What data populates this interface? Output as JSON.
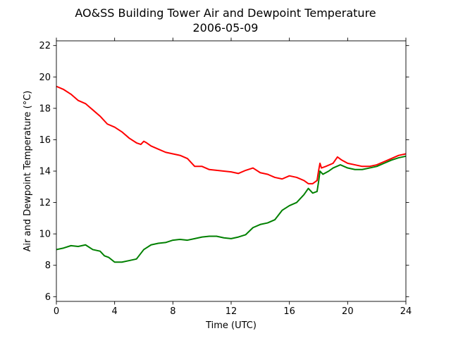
{
  "chart_data": {
    "type": "line",
    "title": "AO&SS Building Tower Air and Dewpoint Temperature",
    "subtitle": "2006-05-09",
    "xlabel": "Time (UTC)",
    "ylabel": "Air and Dewpoint Temperature (°C)",
    "xlim": [
      0,
      24
    ],
    "ylim": [
      5.7,
      22.3
    ],
    "xticks": [
      0,
      4,
      8,
      12,
      16,
      20,
      24
    ],
    "yticks": [
      6,
      8,
      10,
      12,
      14,
      16,
      18,
      20,
      22
    ],
    "grid": false,
    "series": [
      {
        "color": "#ff0000",
        "x": [
          0,
          0.5,
          1,
          1.5,
          2,
          2.5,
          3,
          3.2,
          3.5,
          4,
          4.5,
          5,
          5.5,
          5.8,
          6,
          6.2,
          6.5,
          7,
          7.5,
          8,
          8.5,
          9,
          9.5,
          10,
          10.5,
          11,
          11.5,
          12,
          12.5,
          13,
          13.5,
          14,
          14.5,
          15,
          15.5,
          16,
          16.5,
          17,
          17.3,
          17.6,
          17.9,
          18,
          18.1,
          18.2,
          18.5,
          19,
          19.3,
          19.6,
          20,
          20.5,
          21,
          21.5,
          22,
          22.5,
          23,
          23.5,
          24
        ],
        "y": [
          19.4,
          19.2,
          18.9,
          18.5,
          18.3,
          17.9,
          17.5,
          17.3,
          17.0,
          16.8,
          16.5,
          16.1,
          15.8,
          15.7,
          15.9,
          15.8,
          15.6,
          15.4,
          15.2,
          15.1,
          15.0,
          14.8,
          14.3,
          14.3,
          14.1,
          14.05,
          14.0,
          13.95,
          13.85,
          14.05,
          14.2,
          13.9,
          13.8,
          13.6,
          13.5,
          13.7,
          13.6,
          13.4,
          13.2,
          13.2,
          13.4,
          14.0,
          14.5,
          14.2,
          14.3,
          14.5,
          14.9,
          14.7,
          14.5,
          14.4,
          14.3,
          14.3,
          14.4,
          14.6,
          14.8,
          15.0,
          15.1
        ]
      },
      {
        "color": "#008000",
        "x": [
          0,
          0.5,
          1,
          1.5,
          2,
          2.5,
          3,
          3.3,
          3.6,
          4,
          4.5,
          5,
          5.5,
          6,
          6.5,
          7,
          7.5,
          8,
          8.5,
          9,
          9.5,
          10,
          10.5,
          11,
          11.5,
          12,
          12.5,
          13,
          13.5,
          14,
          14.5,
          15,
          15.5,
          16,
          16.5,
          17,
          17.3,
          17.6,
          17.9,
          18,
          18.1,
          18.3,
          18.7,
          19,
          19.5,
          20,
          20.5,
          21,
          21.5,
          22,
          22.5,
          23,
          23.5,
          24
        ],
        "y": [
          9.0,
          9.1,
          9.25,
          9.2,
          9.3,
          9.0,
          8.9,
          8.6,
          8.5,
          8.2,
          8.2,
          8.3,
          8.4,
          9.0,
          9.3,
          9.4,
          9.45,
          9.6,
          9.65,
          9.6,
          9.7,
          9.8,
          9.85,
          9.85,
          9.75,
          9.7,
          9.8,
          9.95,
          10.4,
          10.6,
          10.7,
          10.9,
          11.5,
          11.8,
          12.0,
          12.5,
          12.9,
          12.6,
          12.7,
          13.3,
          14.0,
          13.8,
          14.0,
          14.2,
          14.4,
          14.2,
          14.1,
          14.1,
          14.2,
          14.3,
          14.5,
          14.7,
          14.85,
          14.95
        ]
      }
    ]
  }
}
